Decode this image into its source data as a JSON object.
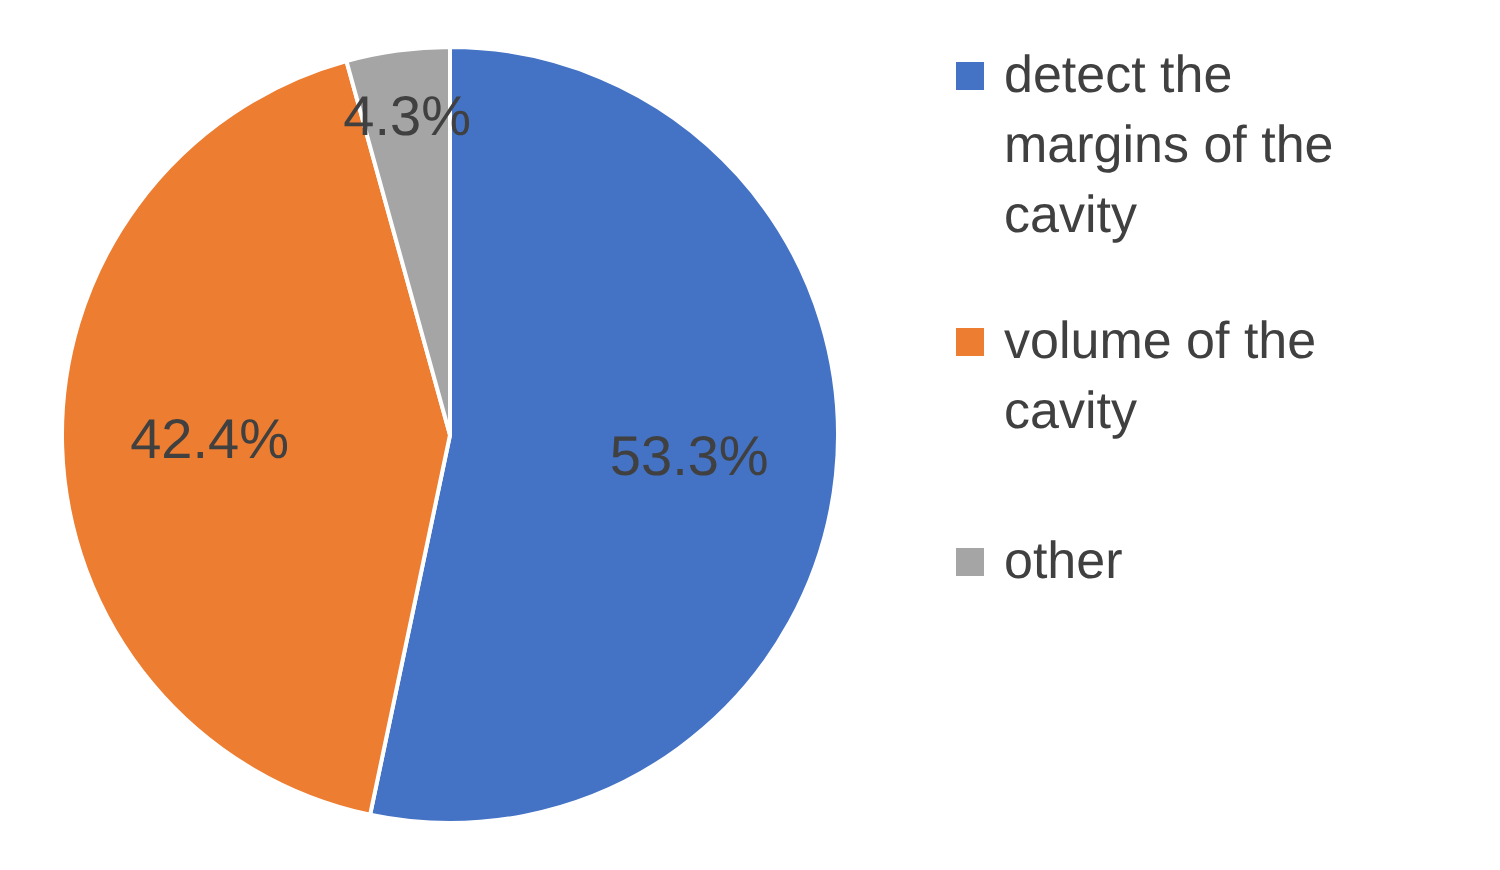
{
  "chart_data": {
    "type": "pie",
    "categories": [
      "detect the margins of the cavity",
      "volume of the cavity",
      "other"
    ],
    "values": [
      53.3,
      42.4,
      4.3
    ],
    "colors": [
      "#4472c4",
      "#ed7d31",
      "#a5a5a5"
    ],
    "value_labels": [
      "53.3%",
      "42.4%",
      "4.3%"
    ],
    "legend": "right"
  }
}
